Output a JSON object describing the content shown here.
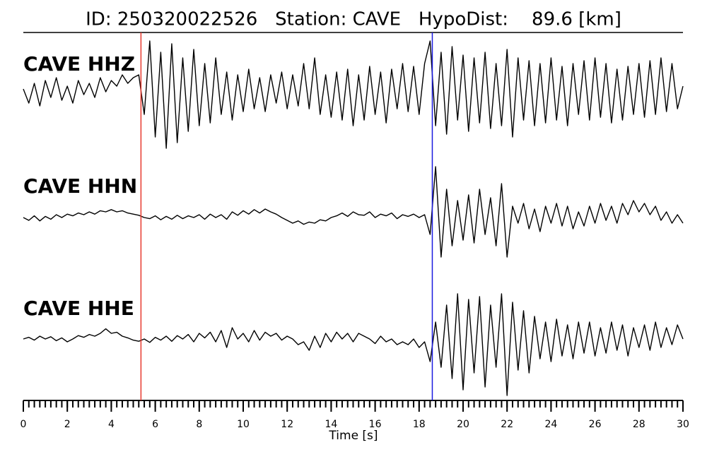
{
  "chart_data": {
    "type": "line",
    "title": "ID: 250320022526   Station: CAVE   HypoDist:    89.6 [km]",
    "x_label": "Time [s]",
    "xlim": [
      0,
      30
    ],
    "xticks": [
      0,
      2,
      4,
      6,
      8,
      10,
      12,
      14,
      16,
      18,
      20,
      22,
      24,
      26,
      28,
      30
    ],
    "xminor_step": 0.25,
    "ylim": [
      -1,
      1
    ],
    "picks": [
      {
        "x": 5.35,
        "color": "#e8392e"
      },
      {
        "x": 18.6,
        "color": "#1a1adf"
      }
    ],
    "label_color": "#4a9a10",
    "x": [
      0,
      0.25,
      0.5,
      0.75,
      1,
      1.25,
      1.5,
      1.75,
      2,
      2.25,
      2.5,
      2.75,
      3,
      3.25,
      3.5,
      3.75,
      4,
      4.25,
      4.5,
      4.75,
      5,
      5.25,
      5.5,
      5.75,
      6,
      6.25,
      6.5,
      6.75,
      7,
      7.25,
      7.5,
      7.75,
      8,
      8.25,
      8.5,
      8.75,
      9,
      9.25,
      9.5,
      9.75,
      10,
      10.25,
      10.5,
      10.75,
      11,
      11.25,
      11.5,
      11.75,
      12,
      12.25,
      12.5,
      12.75,
      13,
      13.25,
      13.5,
      13.75,
      14,
      14.25,
      14.5,
      14.75,
      15,
      15.25,
      15.5,
      15.75,
      16,
      16.25,
      16.5,
      16.75,
      17,
      17.25,
      17.5,
      17.75,
      18,
      18.25,
      18.5,
      18.75,
      19,
      19.25,
      19.5,
      19.75,
      20,
      20.25,
      20.5,
      20.75,
      21,
      21.25,
      21.5,
      21.75,
      22,
      22.25,
      22.5,
      22.75,
      23,
      23.25,
      23.5,
      23.75,
      24,
      24.25,
      24.5,
      24.75,
      25,
      25.25,
      25.5,
      25.75,
      26,
      26.25,
      26.5,
      26.75,
      27,
      27.25,
      27.5,
      27.75,
      28,
      28.25,
      28.5,
      28.75,
      29,
      29.25,
      29.5,
      29.75,
      30
    ],
    "series": [
      {
        "name": "CAVE HHZ",
        "color": "#000000",
        "values": [
          0.05,
          -0.2,
          0.15,
          -0.25,
          0.2,
          -0.1,
          0.25,
          -0.15,
          0.1,
          -0.2,
          0.2,
          -0.05,
          0.15,
          -0.1,
          0.25,
          0,
          0.2,
          0.1,
          0.3,
          0.15,
          0.25,
          0.3,
          -0.4,
          0.9,
          -0.8,
          0.7,
          -1.0,
          0.85,
          -0.9,
          0.6,
          -0.7,
          0.75,
          -0.6,
          0.5,
          -0.55,
          0.6,
          -0.4,
          0.35,
          -0.5,
          0.3,
          -0.35,
          0.4,
          -0.3,
          0.25,
          -0.35,
          0.3,
          -0.2,
          0.35,
          -0.3,
          0.3,
          -0.25,
          0.5,
          -0.3,
          0.6,
          -0.4,
          0.3,
          -0.45,
          0.35,
          -0.5,
          0.4,
          -0.6,
          0.3,
          -0.5,
          0.45,
          -0.4,
          0.35,
          -0.55,
          0.4,
          -0.3,
          0.5,
          -0.35,
          0.45,
          -0.4,
          0.5,
          0.9,
          -0.6,
          0.7,
          -0.75,
          0.8,
          -0.5,
          0.65,
          -0.7,
          0.6,
          -0.55,
          0.7,
          -0.65,
          0.5,
          -0.6,
          0.75,
          -0.8,
          0.6,
          -0.5,
          0.55,
          -0.6,
          0.5,
          -0.55,
          0.6,
          -0.5,
          0.45,
          -0.6,
          0.5,
          -0.4,
          0.55,
          -0.5,
          0.6,
          -0.45,
          0.5,
          -0.55,
          0.4,
          -0.5,
          0.45,
          -0.4,
          0.5,
          -0.45,
          0.55,
          -0.4,
          0.6,
          -0.35,
          0.5,
          -0.3,
          0.1
        ]
      },
      {
        "name": "CAVE HHN",
        "color": "#000000",
        "values": [
          0,
          -0.05,
          0.03,
          -0.06,
          0.02,
          -0.03,
          0.05,
          0,
          0.06,
          0.03,
          0.08,
          0.05,
          0.1,
          0.06,
          0.12,
          0.1,
          0.14,
          0.1,
          0.12,
          0.08,
          0.06,
          0.04,
          0,
          -0.02,
          0.03,
          -0.04,
          0.02,
          -0.03,
          0.04,
          -0.02,
          0.03,
          0,
          0.05,
          -0.03,
          0.06,
          0,
          0.05,
          -0.03,
          0.1,
          0.04,
          0.12,
          0.06,
          0.14,
          0.08,
          0.15,
          0.1,
          0.06,
          0,
          -0.05,
          -0.1,
          -0.06,
          -0.12,
          -0.08,
          -0.1,
          -0.04,
          -0.06,
          0,
          0.03,
          0.08,
          0.02,
          0.1,
          0.05,
          0.04,
          0.1,
          0,
          0.06,
          0.03,
          0.08,
          -0.02,
          0.05,
          0.02,
          0.06,
          0,
          0.05,
          -0.3,
          0.9,
          -0.7,
          0.5,
          -0.5,
          0.3,
          -0.4,
          0.4,
          -0.45,
          0.5,
          -0.3,
          0.35,
          -0.5,
          0.6,
          -0.7,
          0.2,
          -0.1,
          0.25,
          -0.2,
          0.15,
          -0.25,
          0.2,
          -0.1,
          0.25,
          -0.15,
          0.2,
          -0.2,
          0.1,
          -0.15,
          0.2,
          -0.1,
          0.25,
          -0.05,
          0.2,
          -0.1,
          0.25,
          0.05,
          0.3,
          0.1,
          0.25,
          0.05,
          0.2,
          -0.05,
          0.1,
          -0.1,
          0.05,
          -0.1
        ]
      },
      {
        "name": "CAVE HHE",
        "color": "#000000",
        "values": [
          0,
          0.03,
          -0.02,
          0.05,
          0,
          0.04,
          -0.03,
          0.02,
          -0.05,
          0,
          0.06,
          0.03,
          0.08,
          0.05,
          0.1,
          0.18,
          0.1,
          0.12,
          0.05,
          0.02,
          -0.02,
          -0.04,
          0,
          -0.06,
          0.03,
          -0.02,
          0.05,
          -0.04,
          0.06,
          0,
          0.08,
          -0.05,
          0.1,
          0.02,
          0.12,
          -0.05,
          0.15,
          -0.15,
          0.2,
          0,
          0.1,
          -0.05,
          0.15,
          -0.02,
          0.12,
          0.05,
          0.1,
          -0.02,
          0.05,
          0,
          -0.1,
          -0.05,
          -0.2,
          0.05,
          -0.15,
          0.1,
          -0.05,
          0.12,
          0,
          0.1,
          -0.05,
          0.1,
          0.05,
          0,
          -0.08,
          0.05,
          -0.05,
          0,
          -0.1,
          -0.05,
          -0.1,
          0,
          -0.15,
          -0.05,
          -0.4,
          0.3,
          -0.5,
          0.6,
          -0.7,
          0.8,
          -0.9,
          0.7,
          -0.6,
          0.75,
          -0.85,
          0.6,
          -0.5,
          0.8,
          -1.0,
          0.65,
          -0.55,
          0.5,
          -0.6,
          0.4,
          -0.35,
          0.3,
          -0.4,
          0.35,
          -0.3,
          0.25,
          -0.35,
          0.3,
          -0.25,
          0.3,
          -0.3,
          0.2,
          -0.25,
          0.3,
          -0.2,
          0.25,
          -0.3,
          0.2,
          -0.15,
          0.25,
          -0.2,
          0.3,
          -0.15,
          0.2,
          -0.1,
          0.25,
          0
        ]
      }
    ]
  }
}
